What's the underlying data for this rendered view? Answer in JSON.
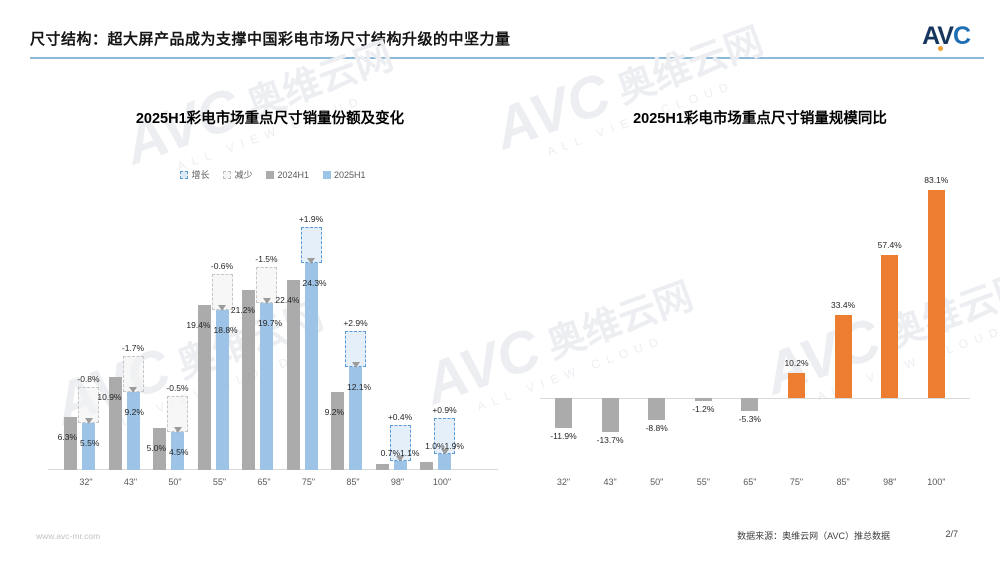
{
  "header": {
    "title": "尺寸结构：超大屏产品成为支撑中国彩电市场尺寸结构升级的中坚力量",
    "logo_av": "AV",
    "logo_c": "C"
  },
  "footer": {
    "website": "www.avc-mr.com",
    "source": "数据来源：奥维云网（AVC）推总数据",
    "page": "2/7"
  },
  "watermark": {
    "brand": "AVC",
    "name": "奥维云网",
    "tagline": "ALL VIEW CLOUD"
  },
  "colors": {
    "accent_blue": "#9dc3e6",
    "gray": "#ababab",
    "orange": "#ed7d31",
    "increase_border": "#5b9bd5",
    "decrease_border": "#bfbfbf",
    "header_line": "#8fb9d9",
    "logo_navy": "#17365d",
    "logo_blue": "#1f6fb5",
    "logo_dot": "#f0a030"
  },
  "chart_data": [
    {
      "type": "bar",
      "title": "2025H1彩电市场重点尺寸销量份额及变化",
      "legend": [
        "增长",
        "减少",
        "2024H1",
        "2025H1"
      ],
      "legend_position": "top",
      "grid": false,
      "unit": "%",
      "categories": [
        "32\"",
        "43\"",
        "50\"",
        "55\"",
        "65\"",
        "75\"",
        "85\"",
        "98\"",
        "100\""
      ],
      "series": [
        {
          "name": "2024H1",
          "values": [
            6.3,
            10.9,
            5.0,
            19.4,
            21.2,
            22.4,
            9.2,
            0.7,
            1.0
          ]
        },
        {
          "name": "2025H1",
          "values": [
            5.5,
            9.2,
            4.5,
            18.8,
            19.7,
            24.3,
            12.1,
            1.1,
            1.9
          ]
        }
      ],
      "change": [
        -0.8,
        -1.7,
        -0.5,
        -0.6,
        -1.5,
        1.9,
        2.9,
        0.4,
        0.9
      ],
      "change_labels": [
        "-0.8%",
        "-1.7%",
        "-0.5%",
        "-0.6%",
        "-1.5%",
        "+1.9%",
        "+2.9%",
        "+0.4%",
        "+0.9%"
      ],
      "ylim": [
        0,
        28
      ]
    },
    {
      "type": "bar",
      "title": "2025H1彩电市场重点尺寸销量规模同比",
      "grid": false,
      "unit": "%",
      "categories": [
        "32\"",
        "43\"",
        "50\"",
        "55\"",
        "65\"",
        "75\"",
        "85\"",
        "98\"",
        "100\""
      ],
      "values": [
        -11.9,
        -13.7,
        -8.8,
        -1.2,
        -5.3,
        10.2,
        33.4,
        57.4,
        83.1
      ],
      "labels": [
        "-11.9%",
        "-13.7%",
        "-8.8%",
        "-1.2%",
        "-5.3%",
        "10.2%",
        "33.4%",
        "57.4%",
        "83.1%"
      ],
      "ylim": [
        -20,
        95
      ]
    }
  ]
}
